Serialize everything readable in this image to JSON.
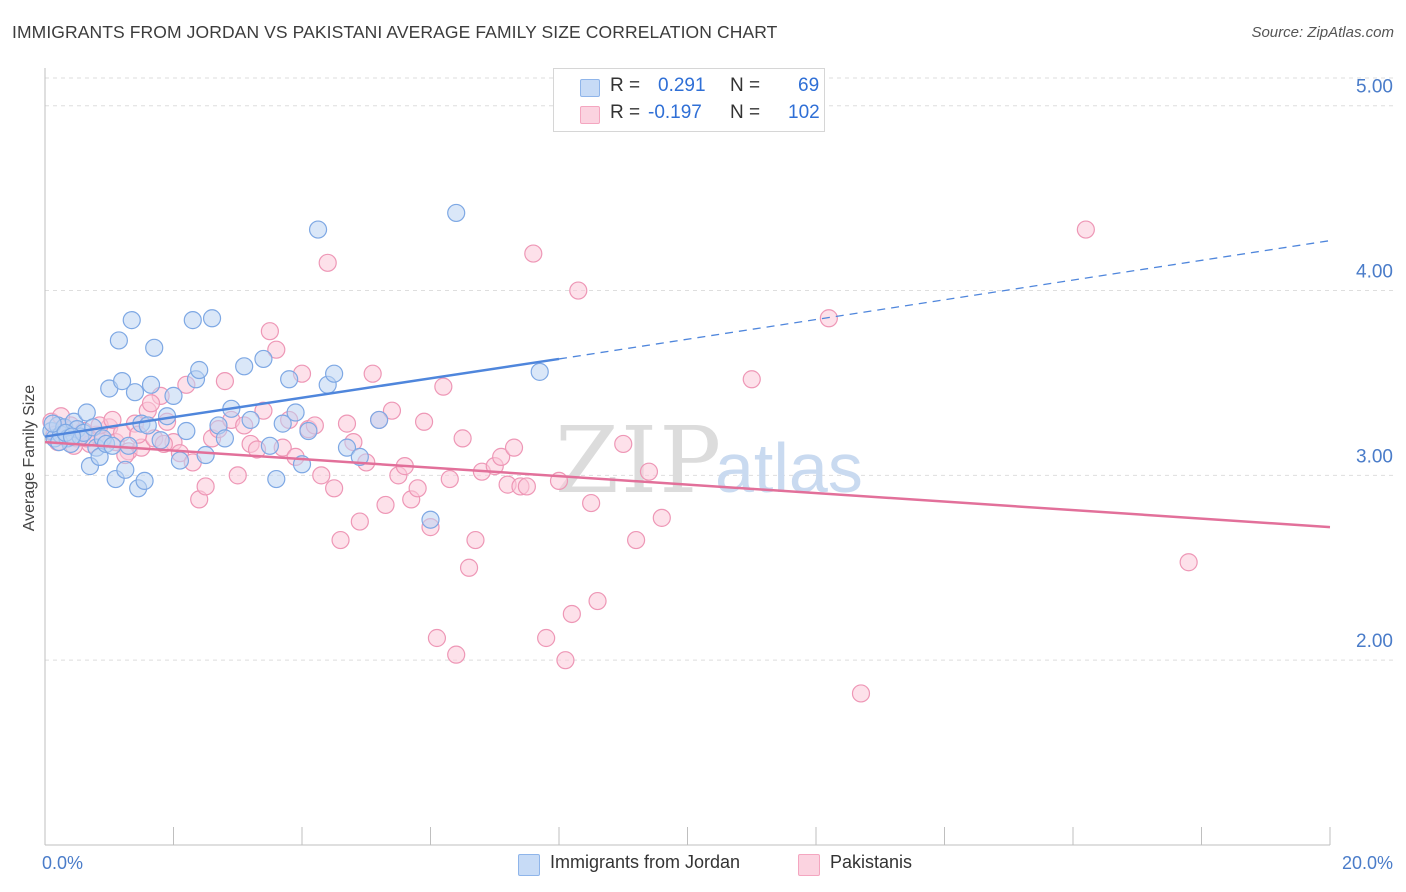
{
  "header": {
    "title": "IMMIGRANTS FROM JORDAN VS PAKISTANI AVERAGE FAMILY SIZE CORRELATION CHART",
    "source": "Source: ZipAtlas.com"
  },
  "watermark": {
    "zip": "ZIP",
    "atlas": "atlas"
  },
  "legend_top": {
    "rows": [
      {
        "r_label": "R =",
        "r_value": "0.291",
        "n_label": "N =",
        "n_value": "69",
        "color": "#8fb5ea"
      },
      {
        "r_label": "R =",
        "r_value": "-0.197",
        "n_label": "N =",
        "n_value": "102",
        "color": "#f4a6c0"
      }
    ]
  },
  "legend_bottom": {
    "items": [
      {
        "label": "Immigrants from Jordan",
        "color": "#8fb5ea"
      },
      {
        "label": "Pakistanis",
        "color": "#f4a6c0"
      }
    ]
  },
  "chart_data": {
    "type": "scatter",
    "title": "IMMIGRANTS FROM JORDAN VS PAKISTANI AVERAGE FAMILY SIZE CORRELATION CHART",
    "xlabel": "",
    "ylabel": "Average Family Size",
    "xlim": [
      0,
      20
    ],
    "ylim": [
      1.0,
      5.15
    ],
    "x_tick_labels": [
      "0.0%",
      "20.0%"
    ],
    "y_ticks": [
      2.0,
      3.0,
      4.0,
      5.0
    ],
    "y_tick_labels": [
      "2.00",
      "3.00",
      "4.00",
      "5.00"
    ],
    "grid": true,
    "legend_placement": "top-center and bottom",
    "colors": {
      "jordan": "#4f86dc",
      "pakistani": "#e2709a"
    },
    "series": [
      {
        "name": "Immigrants from Jordan",
        "color": "#8fb5ea",
        "trend": {
          "x0": 0.0,
          "y0": 3.21,
          "x1": 8.0,
          "y1": 3.63,
          "dash_to_x": 20.0,
          "dash_to_y": 4.27
        },
        "points": [
          [
            0.1,
            3.24
          ],
          [
            0.15,
            3.2
          ],
          [
            0.2,
            3.27
          ],
          [
            0.25,
            3.22
          ],
          [
            0.3,
            3.26
          ],
          [
            0.35,
            3.2
          ],
          [
            0.4,
            3.17
          ],
          [
            0.45,
            3.29
          ],
          [
            0.5,
            3.25
          ],
          [
            0.55,
            3.21
          ],
          [
            0.6,
            3.23
          ],
          [
            0.65,
            3.34
          ],
          [
            0.7,
            3.05
          ],
          [
            0.75,
            3.26
          ],
          [
            0.8,
            3.15
          ],
          [
            0.85,
            3.1
          ],
          [
            0.9,
            3.2
          ],
          [
            0.95,
            3.17
          ],
          [
            1.0,
            3.47
          ],
          [
            1.05,
            3.16
          ],
          [
            1.1,
            2.98
          ],
          [
            1.15,
            3.73
          ],
          [
            1.2,
            3.51
          ],
          [
            1.25,
            3.03
          ],
          [
            1.3,
            3.16
          ],
          [
            1.35,
            3.84
          ],
          [
            1.4,
            3.45
          ],
          [
            1.45,
            2.93
          ],
          [
            1.5,
            3.28
          ],
          [
            1.55,
            2.97
          ],
          [
            1.6,
            3.27
          ],
          [
            1.65,
            3.49
          ],
          [
            1.7,
            3.69
          ],
          [
            1.8,
            3.19
          ],
          [
            1.9,
            3.32
          ],
          [
            2.0,
            3.43
          ],
          [
            2.1,
            3.08
          ],
          [
            2.2,
            3.24
          ],
          [
            2.3,
            3.84
          ],
          [
            2.35,
            3.52
          ],
          [
            2.4,
            3.57
          ],
          [
            2.5,
            3.11
          ],
          [
            2.6,
            3.85
          ],
          [
            2.7,
            3.27
          ],
          [
            2.8,
            3.2
          ],
          [
            2.9,
            3.36
          ],
          [
            3.1,
            3.59
          ],
          [
            3.2,
            3.3
          ],
          [
            3.4,
            3.63
          ],
          [
            3.5,
            3.16
          ],
          [
            3.6,
            2.98
          ],
          [
            3.7,
            3.28
          ],
          [
            3.8,
            3.52
          ],
          [
            3.9,
            3.34
          ],
          [
            4.0,
            3.06
          ],
          [
            4.1,
            3.24
          ],
          [
            4.25,
            4.33
          ],
          [
            4.4,
            3.49
          ],
          [
            4.5,
            3.55
          ],
          [
            4.7,
            3.15
          ],
          [
            4.9,
            3.1
          ],
          [
            5.2,
            3.3
          ],
          [
            6.0,
            2.76
          ],
          [
            6.4,
            4.42
          ],
          [
            7.7,
            3.56
          ],
          [
            0.12,
            3.28
          ],
          [
            0.22,
            3.18
          ],
          [
            0.32,
            3.23
          ],
          [
            0.42,
            3.21
          ]
        ]
      },
      {
        "name": "Pakistanis",
        "color": "#f4a6c0",
        "trend": {
          "x0": 0.0,
          "y0": 3.18,
          "x1": 20.0,
          "y1": 2.72
        },
        "points": [
          [
            0.1,
            3.29
          ],
          [
            0.15,
            3.22
          ],
          [
            0.2,
            3.18
          ],
          [
            0.3,
            3.25
          ],
          [
            0.35,
            3.21
          ],
          [
            0.4,
            3.27
          ],
          [
            0.5,
            3.2
          ],
          [
            0.6,
            3.24
          ],
          [
            0.7,
            3.17
          ],
          [
            0.8,
            3.22
          ],
          [
            0.9,
            3.19
          ],
          [
            1.0,
            3.26
          ],
          [
            1.1,
            3.18
          ],
          [
            1.2,
            3.23
          ],
          [
            1.3,
            3.13
          ],
          [
            1.4,
            3.28
          ],
          [
            1.5,
            3.15
          ],
          [
            1.6,
            3.35
          ],
          [
            1.7,
            3.2
          ],
          [
            1.8,
            3.43
          ],
          [
            1.9,
            3.29
          ],
          [
            2.0,
            3.18
          ],
          [
            2.1,
            3.12
          ],
          [
            2.2,
            3.49
          ],
          [
            2.3,
            3.07
          ],
          [
            2.4,
            2.87
          ],
          [
            2.5,
            2.94
          ],
          [
            2.6,
            3.2
          ],
          [
            2.7,
            3.25
          ],
          [
            2.8,
            3.51
          ],
          [
            2.9,
            3.3
          ],
          [
            3.0,
            3.0
          ],
          [
            3.1,
            3.27
          ],
          [
            3.2,
            3.17
          ],
          [
            3.3,
            3.14
          ],
          [
            3.4,
            3.35
          ],
          [
            3.5,
            3.78
          ],
          [
            3.6,
            3.68
          ],
          [
            3.7,
            3.15
          ],
          [
            3.8,
            3.3
          ],
          [
            3.9,
            3.1
          ],
          [
            4.0,
            3.55
          ],
          [
            4.1,
            3.25
          ],
          [
            4.2,
            3.27
          ],
          [
            4.3,
            3.0
          ],
          [
            4.4,
            4.15
          ],
          [
            4.5,
            2.93
          ],
          [
            4.6,
            2.65
          ],
          [
            4.7,
            3.28
          ],
          [
            4.8,
            3.18
          ],
          [
            4.9,
            2.75
          ],
          [
            5.0,
            3.07
          ],
          [
            5.1,
            3.55
          ],
          [
            5.2,
            3.3
          ],
          [
            5.3,
            2.84
          ],
          [
            5.4,
            3.35
          ],
          [
            5.5,
            3.0
          ],
          [
            5.6,
            3.05
          ],
          [
            5.7,
            2.87
          ],
          [
            5.8,
            2.93
          ],
          [
            5.9,
            3.29
          ],
          [
            6.0,
            2.72
          ],
          [
            6.1,
            2.12
          ],
          [
            6.2,
            3.48
          ],
          [
            6.3,
            2.98
          ],
          [
            6.4,
            2.03
          ],
          [
            6.5,
            3.2
          ],
          [
            6.6,
            2.5
          ],
          [
            6.7,
            2.65
          ],
          [
            6.8,
            3.02
          ],
          [
            7.0,
            3.05
          ],
          [
            7.1,
            3.1
          ],
          [
            7.2,
            2.95
          ],
          [
            7.3,
            3.15
          ],
          [
            7.4,
            2.94
          ],
          [
            7.5,
            2.94
          ],
          [
            7.6,
            4.2
          ],
          [
            7.8,
            2.12
          ],
          [
            8.0,
            2.97
          ],
          [
            8.1,
            2.0
          ],
          [
            8.2,
            2.25
          ],
          [
            8.3,
            4.0
          ],
          [
            8.5,
            2.85
          ],
          [
            8.6,
            2.32
          ],
          [
            9.0,
            3.17
          ],
          [
            9.2,
            2.65
          ],
          [
            9.4,
            3.02
          ],
          [
            9.6,
            2.77
          ],
          [
            11.0,
            3.52
          ],
          [
            12.2,
            3.85
          ],
          [
            12.7,
            1.82
          ],
          [
            16.2,
            4.33
          ],
          [
            17.8,
            2.53
          ],
          [
            0.25,
            3.32
          ],
          [
            0.45,
            3.16
          ],
          [
            0.65,
            3.2
          ],
          [
            0.85,
            3.27
          ],
          [
            1.05,
            3.3
          ],
          [
            1.25,
            3.11
          ],
          [
            1.45,
            3.22
          ],
          [
            1.65,
            3.39
          ],
          [
            1.85,
            3.17
          ]
        ]
      }
    ]
  }
}
